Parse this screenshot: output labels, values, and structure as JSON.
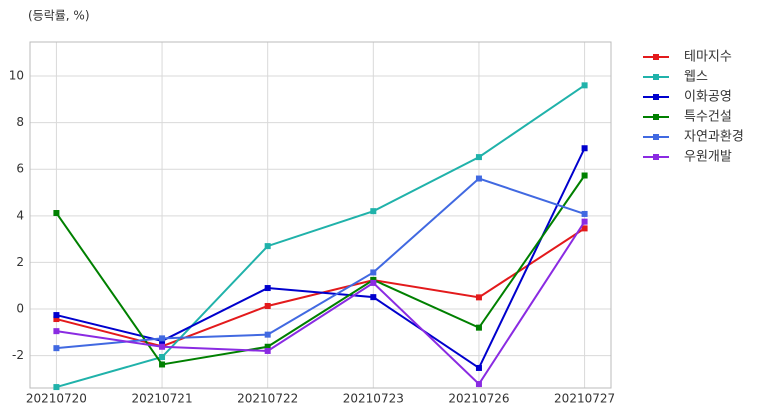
{
  "chart_data": {
    "type": "line",
    "y_label": "(등락률, %)",
    "categories": [
      "20210720",
      "20210721",
      "20210722",
      "20210723",
      "20210726",
      "20210727"
    ],
    "series": [
      {
        "name": "테마지수",
        "color": "#e31a1c",
        "values": [
          -0.43,
          -1.6,
          0.13,
          1.24,
          0.5,
          3.46
        ]
      },
      {
        "name": "웹스",
        "color": "#20b2aa",
        "values": [
          -3.35,
          -2.06,
          2.7,
          4.2,
          6.52,
          9.6
        ]
      },
      {
        "name": "이화공영",
        "color": "#0000cd",
        "values": [
          -0.26,
          -1.37,
          0.9,
          0.51,
          -2.53,
          6.9
        ]
      },
      {
        "name": "특수건설",
        "color": "#008000",
        "values": [
          4.12,
          -2.38,
          -1.62,
          1.25,
          -0.8,
          5.73
        ]
      },
      {
        "name": "자연과환경",
        "color": "#4169e1",
        "values": [
          -1.68,
          -1.26,
          -1.1,
          1.57,
          5.6,
          4.08
        ]
      },
      {
        "name": "우원개발",
        "color": "#8a2be2",
        "values": [
          -0.95,
          -1.62,
          -1.8,
          1.12,
          -3.22,
          3.75
        ]
      }
    ],
    "ylim": [
      -3.39,
      11.46
    ],
    "yticks": [
      -2,
      0,
      2,
      4,
      6,
      8,
      10
    ],
    "grid": true,
    "legend": "outside-right-top"
  }
}
